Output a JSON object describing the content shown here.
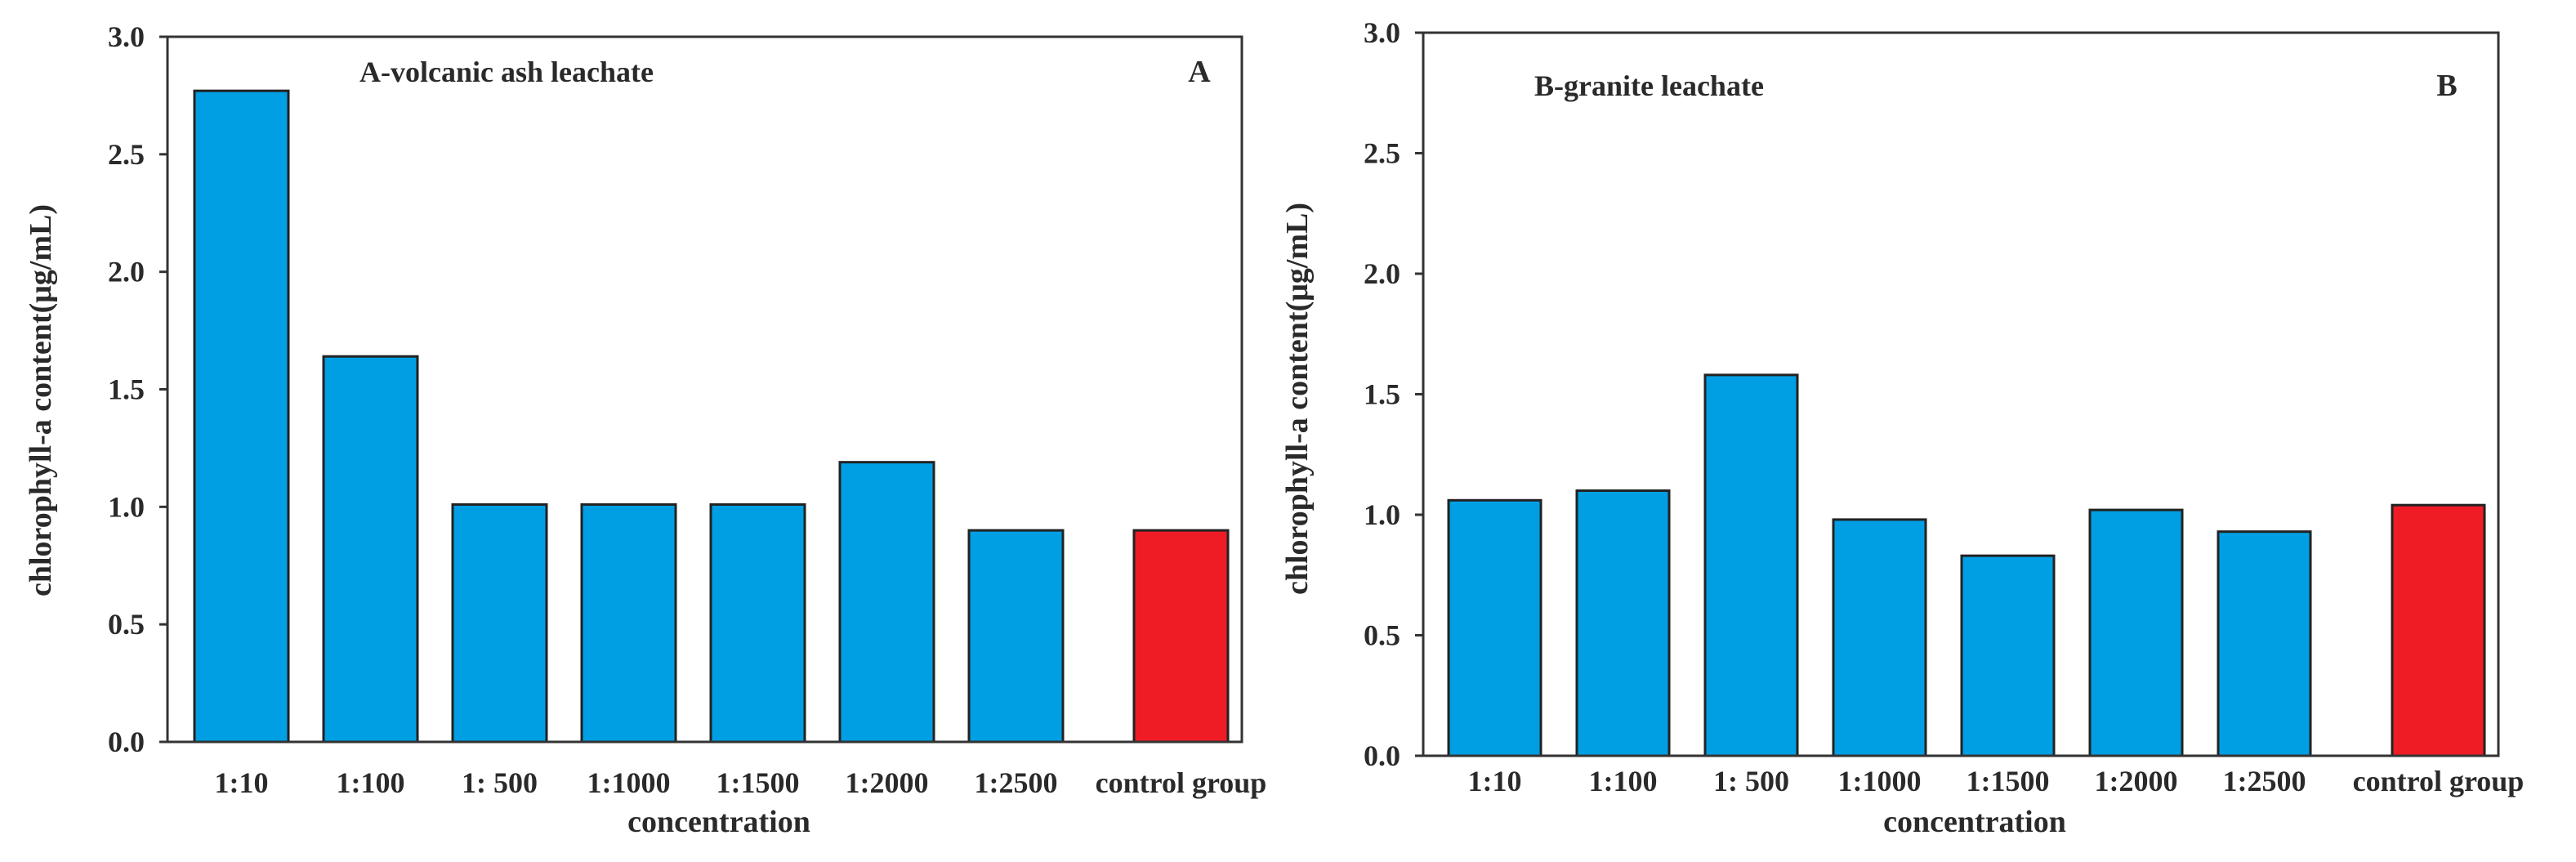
{
  "chart_data": [
    {
      "type": "bar",
      "title": "A-volcanic ash leachate",
      "panel_letter": "A",
      "xlabel": "concentration",
      "ylabel": "chlorophyll-a content(μg/mL)",
      "ylim": [
        0,
        3.0
      ],
      "yticks": [
        "0.0",
        "0.5",
        "1.0",
        "1.5",
        "2.0",
        "2.5",
        "3.0"
      ],
      "grid": false,
      "categories": [
        "1:10",
        "1:100",
        "1:  500",
        "1:1000",
        "1:1500",
        "1:2000",
        "1:2500",
        "control group"
      ],
      "values": [
        2.77,
        1.64,
        1.01,
        1.01,
        1.01,
        1.19,
        0.9,
        0.9
      ],
      "bar_colors": [
        "#009fe3",
        "#009fe3",
        "#009fe3",
        "#009fe3",
        "#009fe3",
        "#009fe3",
        "#009fe3",
        "#ef1c25"
      ]
    },
    {
      "type": "bar",
      "title": "B-granite leachate",
      "panel_letter": "B",
      "xlabel": "concentration",
      "ylabel": "chlorophyll-a content(μg/mL)",
      "ylim": [
        0,
        3.0
      ],
      "yticks": [
        "0.0",
        "0.5",
        "1.0",
        "1.5",
        "2.0",
        "2.5",
        "3.0"
      ],
      "grid": false,
      "categories": [
        "1:10",
        "1:100",
        "1:  500",
        "1:1000",
        "1:1500",
        "1:2000",
        "1:2500",
        "control group"
      ],
      "values": [
        1.06,
        1.1,
        1.58,
        0.98,
        0.83,
        1.02,
        0.93,
        1.04
      ],
      "bar_colors": [
        "#009fe3",
        "#009fe3",
        "#009fe3",
        "#009fe3",
        "#009fe3",
        "#009fe3",
        "#009fe3",
        "#ef1c25"
      ]
    }
  ]
}
